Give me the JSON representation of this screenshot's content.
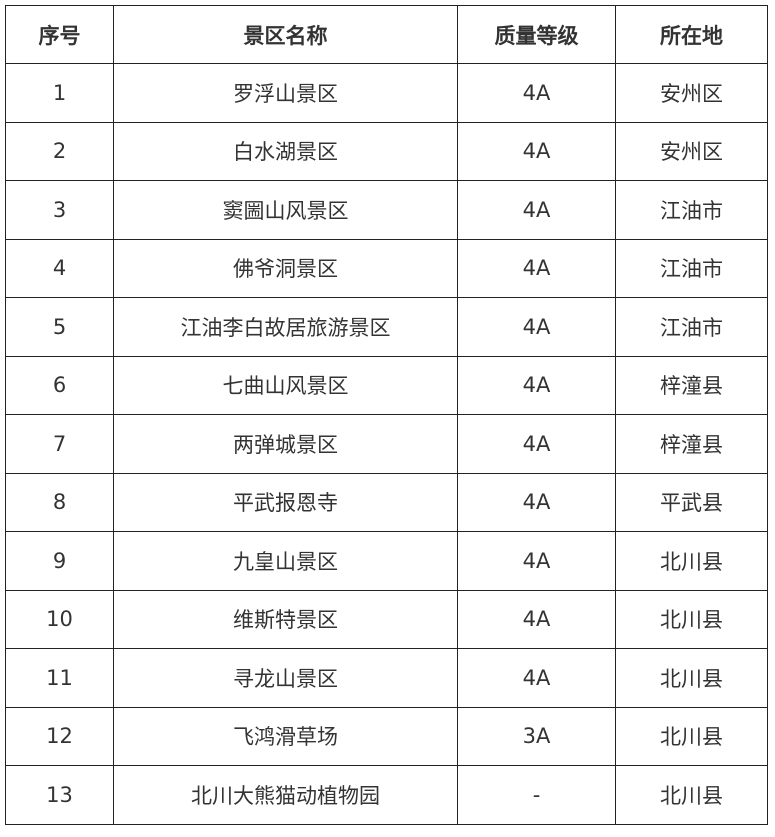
{
  "headers": [
    "序号",
    "景区名称",
    "质量等级",
    "所在地"
  ],
  "rows": [
    [
      "1",
      "罗浮山景区",
      "4A",
      "安州区"
    ],
    [
      "2",
      "白水湖景区",
      "4A",
      "安州区"
    ],
    [
      "3",
      "窦圌山风景区",
      "4A",
      "江油市"
    ],
    [
      "4",
      "佛爷洞景区",
      "4A",
      "江油市"
    ],
    [
      "5",
      "江油李白故居旅游景区",
      "4A",
      "江油市"
    ],
    [
      "6",
      "七曲山风景区",
      "4A",
      "梓潼县"
    ],
    [
      "7",
      "两弹城景区",
      "4A",
      "梓潼县"
    ],
    [
      "8",
      "平武报恩寺",
      "4A",
      "平武县"
    ],
    [
      "9",
      "九皇山景区",
      "4A",
      "北川县"
    ],
    [
      "10",
      "维斯特景区",
      "4A",
      "北川县"
    ],
    [
      "11",
      "寻龙山景区",
      "4A",
      "北川县"
    ],
    [
      "12",
      "飞鸿滑草场",
      "3A",
      "北川县"
    ],
    [
      "13",
      "北川大熊猫动植物园",
      "-",
      "北川县"
    ]
  ]
}
